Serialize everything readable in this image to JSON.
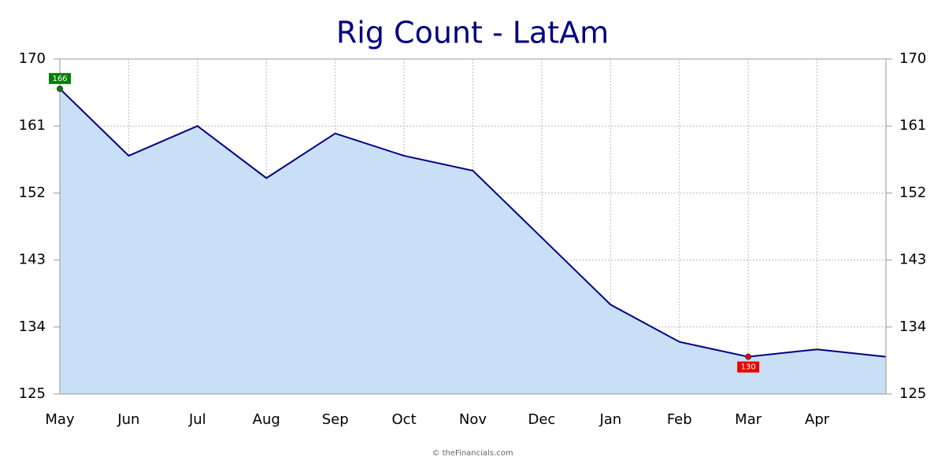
{
  "chart_data": {
    "type": "area",
    "title": "Rig Count - LatAm",
    "source": "© theFinancials.com",
    "categories": [
      "May",
      "Jun",
      "Jul",
      "Aug",
      "Sep",
      "Oct",
      "Nov",
      "Dec",
      "Jan",
      "Feb",
      "Mar",
      "Apr",
      null
    ],
    "values": [
      166,
      157,
      161,
      154,
      160,
      157,
      155,
      146,
      137,
      132,
      130,
      131,
      130
    ],
    "line_color": "#000080",
    "fill_color": "#c9dff5",
    "max_color": "#008000",
    "min_color": "#ee0000",
    "ylim": [
      125,
      170
    ],
    "yticks": [
      125,
      134,
      143,
      152,
      161,
      170
    ],
    "grid": true,
    "right_axis": true
  }
}
